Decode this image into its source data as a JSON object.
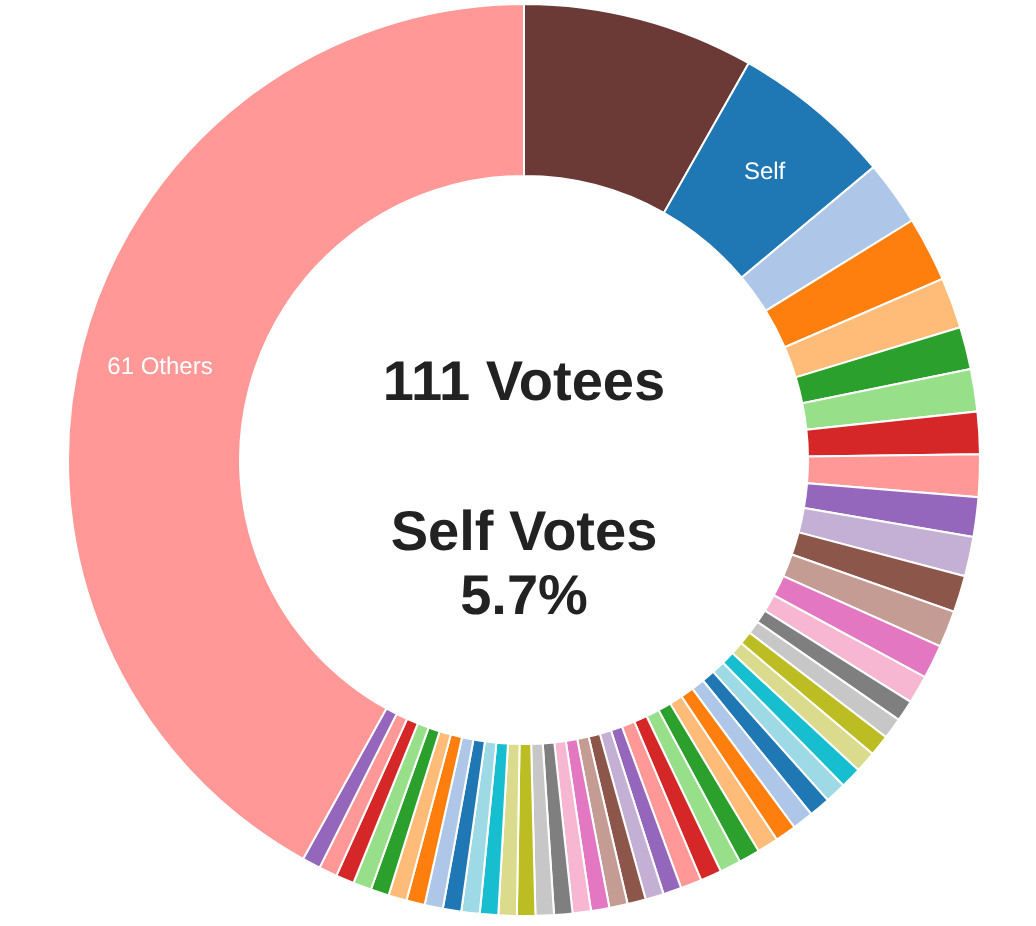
{
  "chart_data": {
    "type": "donut",
    "title": "111 Votees",
    "annotations": [
      "Self Votes",
      "5.7%"
    ],
    "categories": [
      null,
      "Self",
      null,
      null,
      null,
      null,
      null,
      null,
      null,
      null,
      null,
      null,
      null,
      null,
      null,
      null,
      null,
      null,
      null,
      null,
      null,
      null,
      null,
      null,
      null,
      null,
      null,
      null,
      null,
      null,
      null,
      null,
      null,
      null,
      null,
      null,
      null,
      null,
      null,
      null,
      null,
      null,
      null,
      null,
      null,
      null,
      null,
      null,
      null,
      null,
      "61 Others"
    ],
    "values": [
      8.2,
      5.7,
      2.3,
      2.3,
      1.8,
      1.5,
      1.5,
      1.5,
      1.5,
      1.4,
      1.4,
      1.3,
      1.3,
      1.2,
      1.0,
      0.75,
      0.75,
      0.75,
      0.75,
      0.75,
      0.75,
      0.75,
      0.75,
      0.75,
      0.75,
      0.75,
      0.75,
      0.75,
      0.75,
      0.65,
      0.65,
      0.65,
      0.65,
      0.65,
      0.65,
      0.65,
      0.65,
      0.65,
      0.65,
      0.65,
      0.65,
      0.65,
      0.65,
      0.65,
      0.65,
      0.65,
      0.65,
      0.65,
      0.65,
      0.65,
      41.95
    ],
    "colors": [
      "#6b3a36",
      "#1f77b4",
      "#aec7e8",
      "#ff7f0e",
      "#ffbb78",
      "#2ca02c",
      "#98df8a",
      "#d62728",
      "#ff9896",
      "#9467bd",
      "#c5b0d5",
      "#8c564b",
      "#c49c94",
      "#e377c2",
      "#f7b6d2",
      "#7f7f7f",
      "#c7c7c7",
      "#bcbd22",
      "#dbdb8d",
      "#17becf",
      "#9edae5",
      "#1f77b4",
      "#aec7e8",
      "#ff7f0e",
      "#ffbb78",
      "#2ca02c",
      "#98df8a",
      "#d62728",
      "#ff9896",
      "#9467bd",
      "#c5b0d5",
      "#8c564b",
      "#c49c94",
      "#e377c2",
      "#f7b6d2",
      "#7f7f7f",
      "#c7c7c7",
      "#bcbd22",
      "#dbdb8d",
      "#17becf",
      "#9edae5",
      "#1f77b4",
      "#aec7e8",
      "#ff7f0e",
      "#ffbb78",
      "#2ca02c",
      "#98df8a",
      "#d62728",
      "#ff9896",
      "#9467bd",
      "#ff9896"
    ]
  }
}
